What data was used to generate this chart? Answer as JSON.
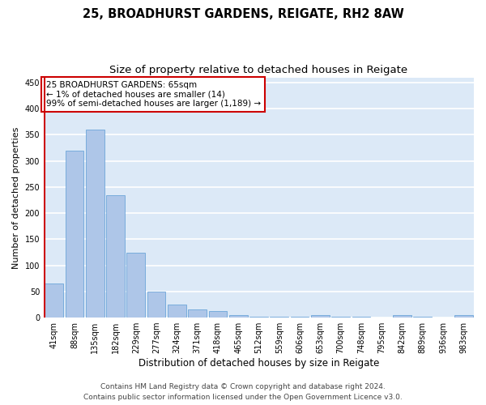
{
  "title_line1": "25, BROADHURST GARDENS, REIGATE, RH2 8AW",
  "title_line2": "Size of property relative to detached houses in Reigate",
  "xlabel": "Distribution of detached houses by size in Reigate",
  "ylabel": "Number of detached properties",
  "categories": [
    "41sqm",
    "88sqm",
    "135sqm",
    "182sqm",
    "229sqm",
    "277sqm",
    "324sqm",
    "371sqm",
    "418sqm",
    "465sqm",
    "512sqm",
    "559sqm",
    "606sqm",
    "653sqm",
    "700sqm",
    "748sqm",
    "795sqm",
    "842sqm",
    "889sqm",
    "936sqm",
    "983sqm"
  ],
  "values": [
    65,
    320,
    360,
    235,
    125,
    50,
    25,
    15,
    12,
    5,
    2,
    2,
    1,
    5,
    1,
    1,
    0,
    5,
    1,
    0,
    5
  ],
  "bar_color": "#aec6e8",
  "bar_edge_color": "#5b9bd5",
  "annotation_box_text": "25 BROADHURST GARDENS: 65sqm\n← 1% of detached houses are smaller (14)\n99% of semi-detached houses are larger (1,189) →",
  "annotation_box_color": "#ffffff",
  "annotation_box_edge_color": "#cc0000",
  "marker_line_color": "#cc0000",
  "ylim": [
    0,
    460
  ],
  "yticks": [
    0,
    50,
    100,
    150,
    200,
    250,
    300,
    350,
    400,
    450
  ],
  "background_color": "#dce9f7",
  "grid_color": "#ffffff",
  "fig_background": "#ffffff",
  "footer_line1": "Contains HM Land Registry data © Crown copyright and database right 2024.",
  "footer_line2": "Contains public sector information licensed under the Open Government Licence v3.0.",
  "title1_fontsize": 10.5,
  "title2_fontsize": 9.5,
  "xlabel_fontsize": 8.5,
  "ylabel_fontsize": 8,
  "tick_fontsize": 7,
  "footer_fontsize": 6.5,
  "annot_fontsize": 7.5
}
